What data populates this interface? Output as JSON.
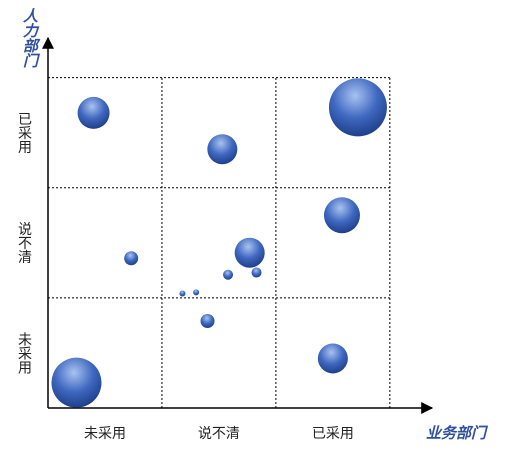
{
  "chart_data": {
    "type": "bubble",
    "x_label": "业务部门",
    "y_label": "人力部门",
    "x": [
      0.4,
      1.53,
      2.72,
      2.58,
      0.73,
      1.77,
      1.58,
      1.83,
      1.18,
      1.3,
      1.4,
      2.5,
      0.25
    ],
    "values": [
      2.68,
      2.35,
      2.73,
      1.75,
      1.36,
      1.41,
      1.21,
      1.23,
      1.04,
      1.05,
      0.79,
      0.45,
      0.23
    ],
    "sizes": [
      16,
      15,
      29,
      18,
      7,
      15,
      5,
      5,
      3,
      3,
      7,
      15,
      25
    ],
    "color": "#3f68c0",
    "xlim": [
      0,
      3.37
    ],
    "ylim": [
      0,
      3.36
    ],
    "xticks": [
      {
        "value": 0.5,
        "label": "未采用"
      },
      {
        "value": 1.5,
        "label": "说不清"
      },
      {
        "value": 2.5,
        "label": "已采用"
      }
    ],
    "yticks": [
      {
        "value": 0.5,
        "label": "未采用"
      },
      {
        "value": 1.5,
        "label": "说不清"
      },
      {
        "value": 2.5,
        "label": "已采用"
      }
    ],
    "xgrid": [
      1,
      2,
      3
    ],
    "ygrid": [
      1,
      2,
      3
    ]
  }
}
